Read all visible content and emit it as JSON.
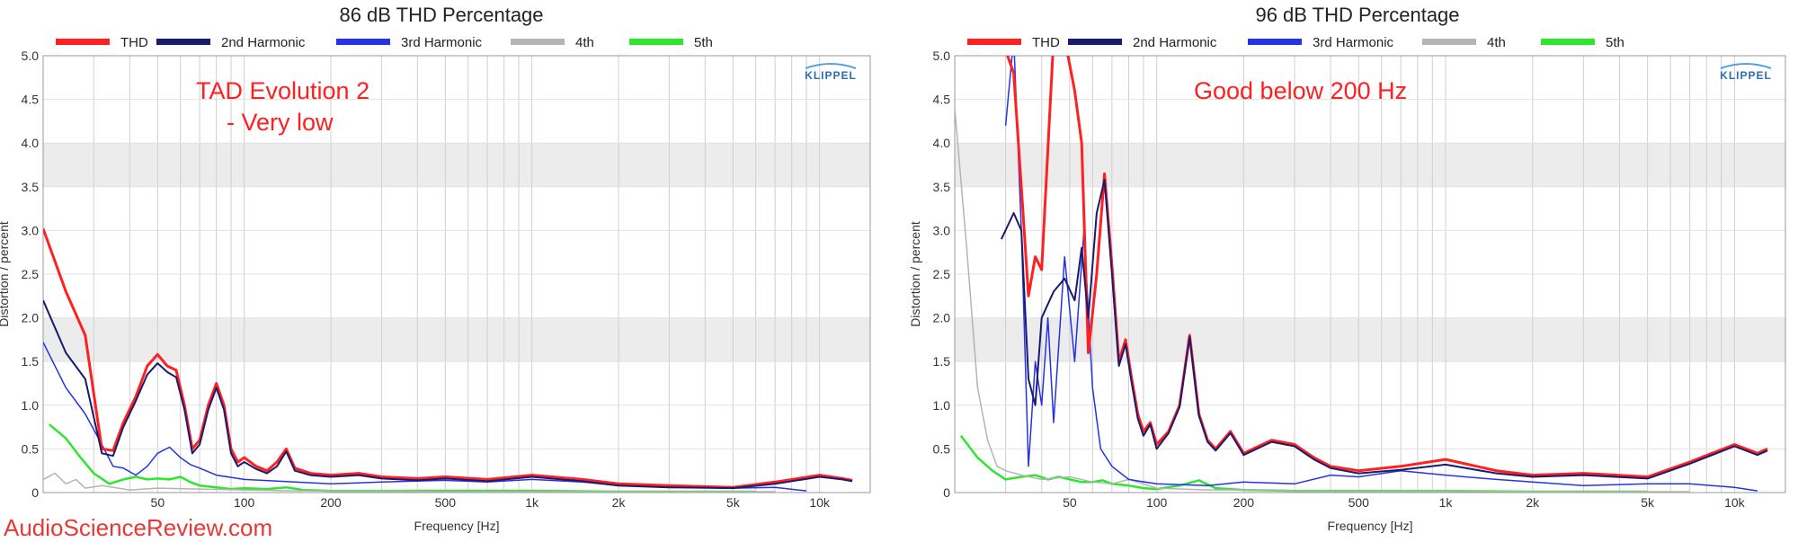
{
  "watermark": "AudioScienceReview.com",
  "colors": {
    "THD": "#ff2020",
    "2nd Harmonic": "#1a1a6e",
    "3rd Harmonic": "#2433e6",
    "4th": "#b4b4b4",
    "5th": "#2ee62e",
    "annotation": "#ff1f1f",
    "band": "#ececec",
    "grid": "#cfcfcf"
  },
  "chart_data": [
    {
      "type": "line",
      "title": "86 dB THD Percentage",
      "xlabel": "Frequency [Hz]",
      "ylabel": "Distortion / percent",
      "x_scale": "log",
      "xlim": [
        20,
        15000
      ],
      "ylim": [
        0,
        5
      ],
      "x_ticks": [
        50,
        100,
        200,
        500,
        1000,
        2000,
        5000,
        10000
      ],
      "x_tick_labels": [
        "50",
        "100",
        "200",
        "500",
        "1k",
        "2k",
        "5k",
        "10k"
      ],
      "y_ticks": [
        0,
        0.5,
        1.0,
        1.5,
        2.0,
        2.5,
        3.0,
        3.5,
        4.0,
        4.5,
        5.0
      ],
      "y_tick_labels": [
        "0",
        "0.5",
        "1.0",
        "1.5",
        "2.0",
        "2.5",
        "3.0",
        "3.5",
        "4.0",
        "4.5",
        "5.0"
      ],
      "legend": [
        "THD",
        "2nd Harmonic",
        "3rd Harmonic",
        "4th",
        "5th"
      ],
      "legend_position": "top",
      "logo": "KLIPPEL",
      "annotation": [
        "TAD Evolution 2",
        "- Very low"
      ],
      "series": [
        {
          "name": "THD",
          "x": [
            20,
            24,
            28,
            32,
            35,
            38,
            42,
            46,
            50,
            54,
            58,
            62,
            66,
            70,
            75,
            80,
            85,
            90,
            95,
            100,
            110,
            120,
            130,
            140,
            150,
            170,
            200,
            250,
            300,
            400,
            500,
            700,
            1000,
            1500,
            2000,
            3000,
            5000,
            7000,
            10000,
            12000,
            13000
          ],
          "y": [
            3.02,
            2.3,
            1.8,
            0.5,
            0.48,
            0.8,
            1.1,
            1.45,
            1.58,
            1.45,
            1.4,
            1.0,
            0.5,
            0.6,
            1.0,
            1.25,
            1.0,
            0.5,
            0.35,
            0.4,
            0.3,
            0.25,
            0.35,
            0.5,
            0.28,
            0.22,
            0.2,
            0.22,
            0.18,
            0.16,
            0.18,
            0.15,
            0.2,
            0.15,
            0.1,
            0.08,
            0.06,
            0.12,
            0.2,
            0.16,
            0.14
          ]
        },
        {
          "name": "2nd Harmonic",
          "x": [
            20,
            24,
            28,
            32,
            35,
            38,
            42,
            46,
            50,
            54,
            58,
            62,
            66,
            70,
            75,
            80,
            85,
            90,
            95,
            100,
            110,
            120,
            130,
            140,
            150,
            170,
            200,
            250,
            300,
            400,
            500,
            700,
            1000,
            1500,
            2000,
            3000,
            5000,
            7000,
            10000,
            12000,
            13000
          ],
          "y": [
            2.2,
            1.6,
            1.3,
            0.45,
            0.42,
            0.75,
            1.05,
            1.35,
            1.48,
            1.38,
            1.32,
            0.95,
            0.45,
            0.55,
            0.95,
            1.2,
            0.95,
            0.45,
            0.3,
            0.35,
            0.27,
            0.22,
            0.3,
            0.47,
            0.25,
            0.2,
            0.18,
            0.2,
            0.16,
            0.14,
            0.16,
            0.13,
            0.18,
            0.13,
            0.08,
            0.06,
            0.05,
            0.1,
            0.18,
            0.15,
            0.13
          ]
        },
        {
          "name": "3rd Harmonic",
          "x": [
            20,
            24,
            28,
            32,
            35,
            38,
            42,
            46,
            50,
            55,
            60,
            65,
            70,
            80,
            100,
            150,
            200,
            300,
            500,
            700,
            1000,
            1500,
            2000,
            3000,
            5000,
            7000,
            9000
          ],
          "y": [
            1.72,
            1.2,
            0.9,
            0.55,
            0.3,
            0.28,
            0.2,
            0.3,
            0.45,
            0.52,
            0.4,
            0.32,
            0.28,
            0.2,
            0.15,
            0.12,
            0.1,
            0.12,
            0.14,
            0.12,
            0.15,
            0.12,
            0.08,
            0.06,
            0.05,
            0.06,
            0.02
          ]
        },
        {
          "name": "4th",
          "x": [
            20,
            22,
            24,
            26,
            28,
            32,
            40,
            50,
            70,
            100,
            150,
            200,
            300,
            500,
            1000,
            2000,
            5000,
            7000
          ],
          "y": [
            0.15,
            0.22,
            0.1,
            0.15,
            0.05,
            0.08,
            0.03,
            0.05,
            0.04,
            0.03,
            0.02,
            0.02,
            0.02,
            0.01,
            0.01,
            0.01,
            0.01,
            0.01
          ]
        },
        {
          "name": "5th",
          "x": [
            21,
            24,
            27,
            30,
            34,
            38,
            42,
            46,
            50,
            55,
            60,
            65,
            70,
            80,
            90,
            100,
            120,
            140,
            160,
            200,
            300,
            500,
            1000,
            2000,
            5000,
            6000
          ],
          "y": [
            0.78,
            0.62,
            0.4,
            0.22,
            0.1,
            0.15,
            0.18,
            0.15,
            0.16,
            0.15,
            0.18,
            0.12,
            0.08,
            0.06,
            0.04,
            0.05,
            0.04,
            0.06,
            0.03,
            0.02,
            0.02,
            0.02,
            0.02,
            0.01,
            0.01,
            0.01
          ]
        }
      ]
    },
    {
      "type": "line",
      "title": "96 dB THD Percentage",
      "xlabel": "Frequency [Hz]",
      "ylabel": "Distortion / percent",
      "x_scale": "log",
      "xlim": [
        20,
        15000
      ],
      "ylim": [
        0,
        5
      ],
      "x_ticks": [
        50,
        100,
        200,
        500,
        1000,
        2000,
        5000,
        10000
      ],
      "x_tick_labels": [
        "50",
        "100",
        "200",
        "500",
        "1k",
        "2k",
        "5k",
        "10k"
      ],
      "y_ticks": [
        0,
        0.5,
        1.0,
        1.5,
        2.0,
        2.5,
        3.0,
        3.5,
        4.0,
        4.5,
        5.0
      ],
      "y_tick_labels": [
        "0",
        "0.5",
        "1.0",
        "1.5",
        "2.0",
        "2.5",
        "3.0",
        "3.5",
        "4.0",
        "4.5",
        "5.0"
      ],
      "legend": [
        "THD",
        "2nd Harmonic",
        "3rd Harmonic",
        "4th",
        "5th"
      ],
      "legend_position": "top",
      "logo": "KLIPPEL",
      "annotation": [
        "Good below 200 Hz"
      ],
      "series": [
        {
          "name": "THD",
          "x": [
            29,
            32,
            34,
            36,
            38,
            40,
            44,
            48,
            52,
            55,
            58,
            62,
            66,
            70,
            74,
            78,
            82,
            86,
            90,
            95,
            100,
            110,
            120,
            130,
            140,
            150,
            160,
            180,
            200,
            250,
            300,
            350,
            400,
            500,
            700,
            1000,
            1500,
            2000,
            3000,
            5000,
            7000,
            10000,
            12000,
            13000
          ],
          "y": [
            5.2,
            4.8,
            3.5,
            2.25,
            2.7,
            2.55,
            5.2,
            5.2,
            4.6,
            4.0,
            1.6,
            2.5,
            3.65,
            2.6,
            1.5,
            1.75,
            1.3,
            0.9,
            0.7,
            0.8,
            0.55,
            0.7,
            1.0,
            1.8,
            0.9,
            0.6,
            0.5,
            0.7,
            0.45,
            0.6,
            0.55,
            0.4,
            0.3,
            0.25,
            0.3,
            0.38,
            0.25,
            0.2,
            0.22,
            0.18,
            0.35,
            0.55,
            0.45,
            0.5
          ]
        },
        {
          "name": "2nd Harmonic",
          "x": [
            29,
            32,
            34,
            36,
            38,
            40,
            44,
            48,
            52,
            55,
            58,
            62,
            66,
            70,
            74,
            78,
            82,
            86,
            90,
            95,
            100,
            110,
            120,
            130,
            140,
            150,
            160,
            180,
            200,
            250,
            300,
            350,
            400,
            500,
            700,
            1000,
            1500,
            2000,
            3000,
            5000,
            7000,
            10000,
            12000,
            13000
          ],
          "y": [
            2.9,
            3.2,
            3.0,
            1.3,
            1.0,
            2.0,
            2.3,
            2.45,
            2.2,
            2.8,
            2.0,
            3.2,
            3.58,
            2.5,
            1.45,
            1.7,
            1.25,
            0.85,
            0.65,
            0.78,
            0.5,
            0.68,
            0.98,
            1.78,
            0.88,
            0.58,
            0.48,
            0.68,
            0.43,
            0.58,
            0.53,
            0.38,
            0.28,
            0.22,
            0.26,
            0.32,
            0.22,
            0.18,
            0.2,
            0.16,
            0.33,
            0.53,
            0.43,
            0.48
          ]
        },
        {
          "name": "3rd Harmonic",
          "x": [
            30,
            32,
            34,
            36,
            38,
            40,
            42,
            44,
            48,
            52,
            56,
            60,
            64,
            70,
            80,
            100,
            150,
            200,
            300,
            400,
            500,
            700,
            1000,
            1500,
            2000,
            3000,
            5000,
            7000,
            10000,
            12000
          ],
          "y": [
            4.2,
            5.2,
            3.0,
            0.3,
            1.5,
            1.0,
            2.0,
            0.8,
            2.7,
            1.5,
            3.0,
            1.2,
            0.5,
            0.3,
            0.15,
            0.1,
            0.08,
            0.12,
            0.1,
            0.2,
            0.18,
            0.25,
            0.2,
            0.15,
            0.12,
            0.08,
            0.1,
            0.1,
            0.06,
            0.02
          ]
        },
        {
          "name": "4th",
          "x": [
            20,
            22,
            24,
            26,
            28,
            30,
            34,
            40,
            50,
            60,
            70,
            80,
            90,
            100,
            150,
            200,
            300,
            500,
            1000,
            2000,
            5000,
            7000
          ],
          "y": [
            4.4,
            2.8,
            1.2,
            0.6,
            0.3,
            0.25,
            0.2,
            0.15,
            0.18,
            0.12,
            0.1,
            0.15,
            0.1,
            0.05,
            0.03,
            0.03,
            0.02,
            0.02,
            0.02,
            0.01,
            0.01,
            0.01
          ]
        },
        {
          "name": "5th",
          "x": [
            21,
            24,
            27,
            30,
            34,
            38,
            42,
            46,
            50,
            55,
            60,
            65,
            70,
            80,
            90,
            100,
            120,
            140,
            160,
            200,
            300,
            500,
            1000,
            2000,
            5000
          ],
          "y": [
            0.65,
            0.4,
            0.25,
            0.15,
            0.18,
            0.2,
            0.15,
            0.18,
            0.15,
            0.12,
            0.12,
            0.14,
            0.1,
            0.08,
            0.05,
            0.04,
            0.08,
            0.14,
            0.05,
            0.03,
            0.02,
            0.02,
            0.02,
            0.01,
            0.01
          ]
        }
      ]
    }
  ]
}
